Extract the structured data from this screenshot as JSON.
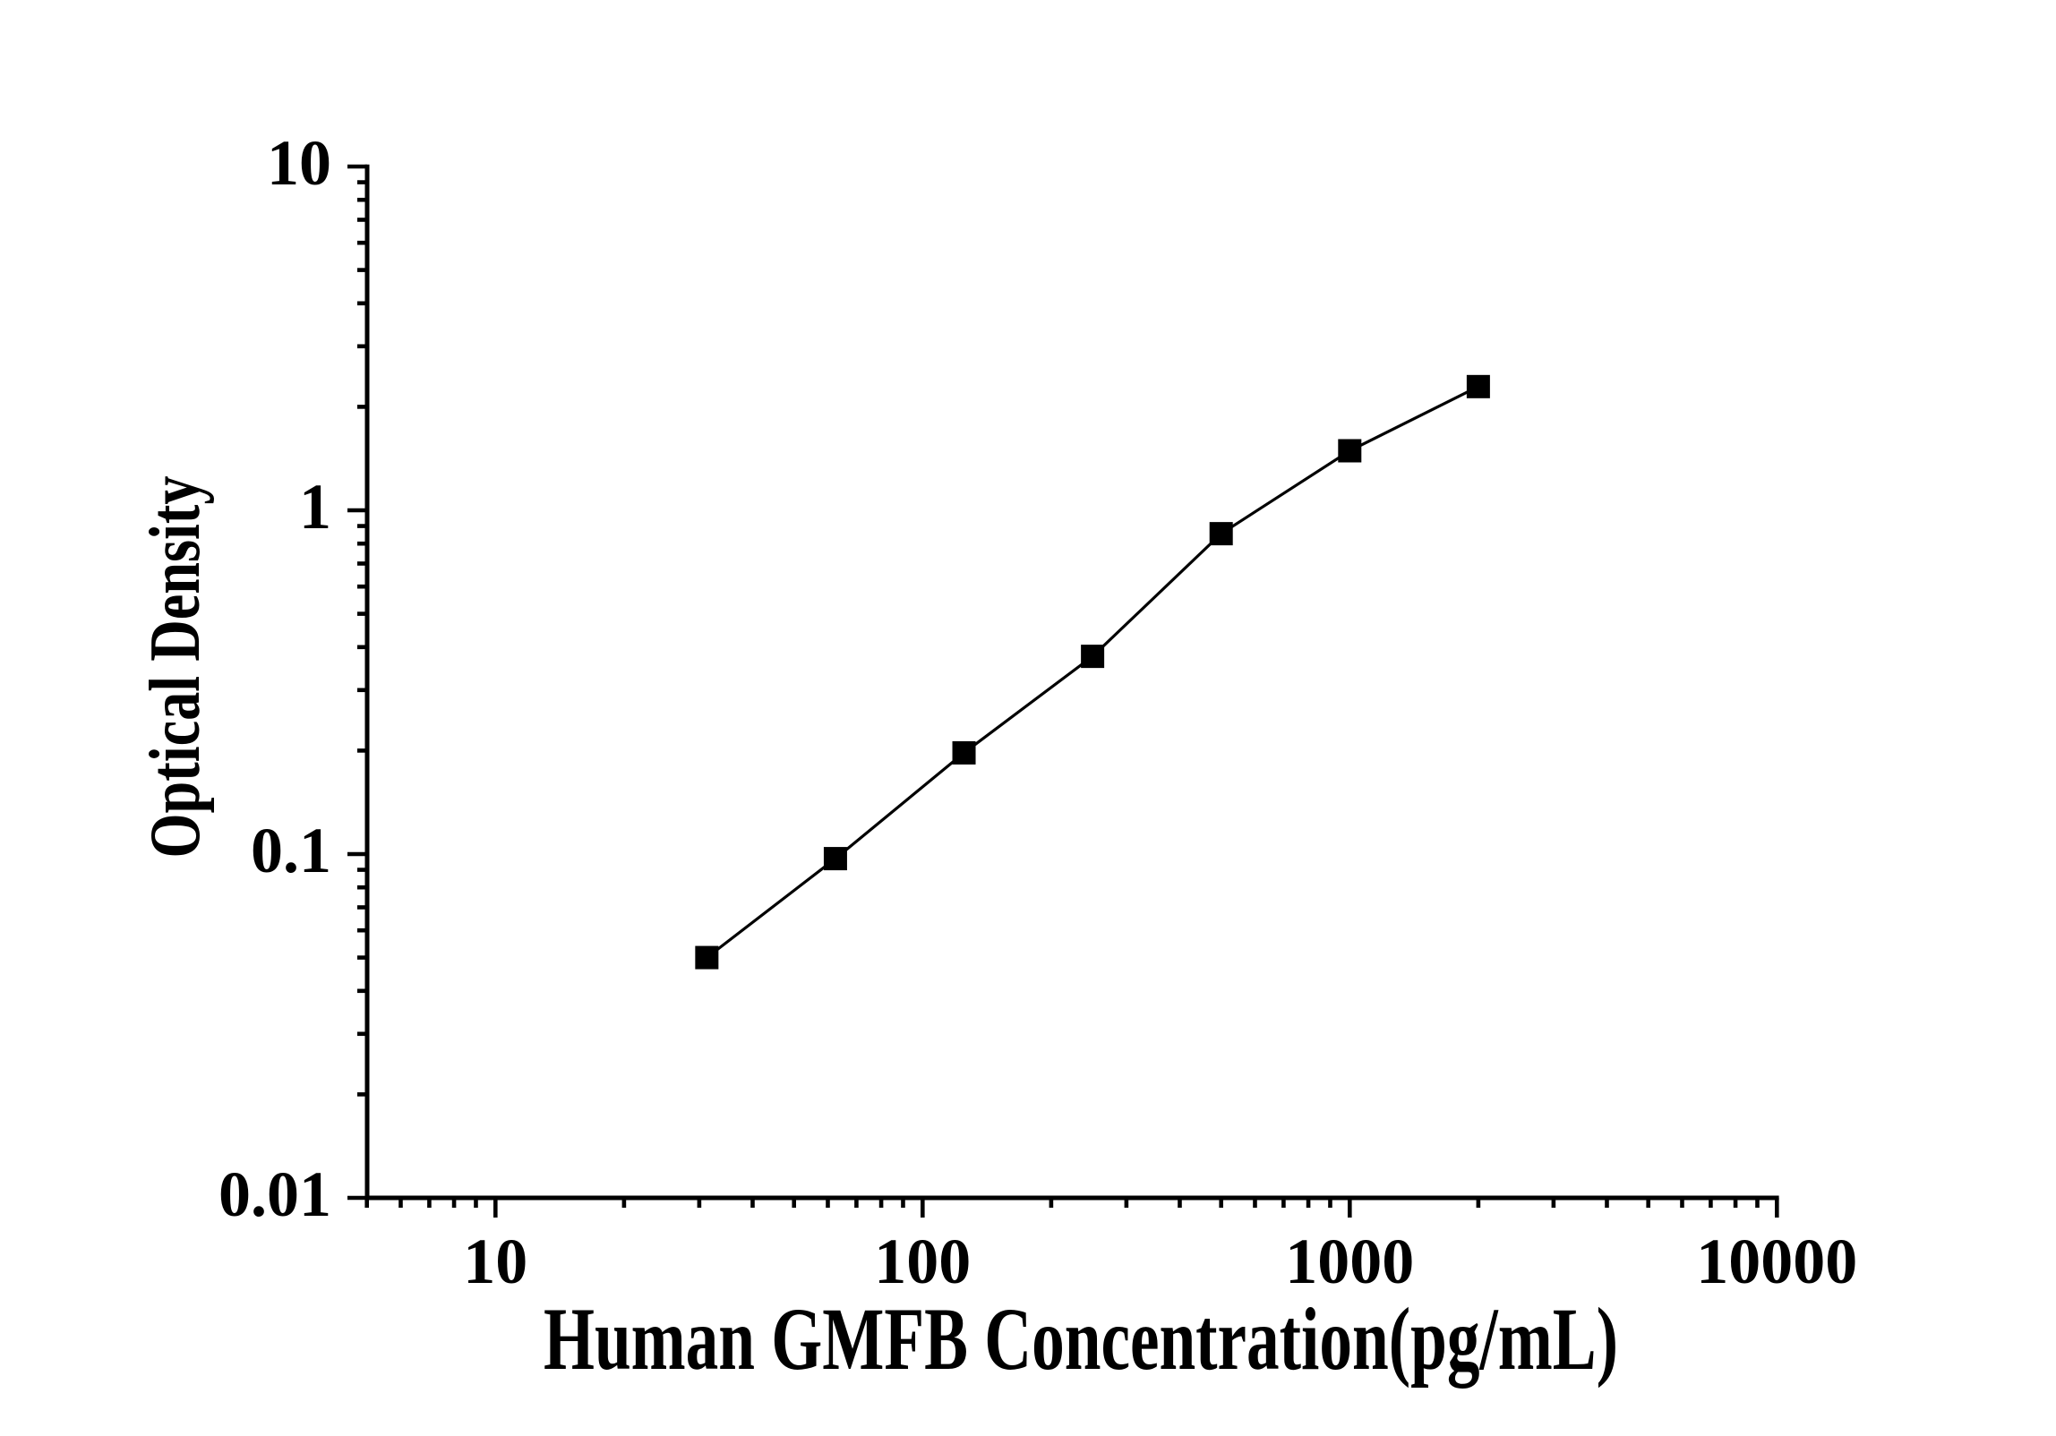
{
  "figure": {
    "background_color": "#ffffff",
    "ink_color": "#000000"
  },
  "chart_data": {
    "type": "line",
    "title": "",
    "xlabel": "Human GMFB Concentration(pg/mL)",
    "ylabel": "Optical Density",
    "x_scale": "log",
    "y_scale": "log",
    "xlim": [
      5,
      10000
    ],
    "ylim": [
      0.01,
      10
    ],
    "x_major_ticks": [
      10,
      100,
      1000,
      10000
    ],
    "x_major_tick_labels": [
      "10",
      "100",
      "1000",
      "10000"
    ],
    "y_major_ticks": [
      10,
      1,
      0.1,
      0.01
    ],
    "y_major_tick_labels": [
      "10",
      "1",
      "0.1",
      "0.01"
    ],
    "grid": false,
    "legend": "none",
    "marker": "filled-square",
    "series": [
      {
        "name": "standard-curve",
        "color": "#000000",
        "x": [
          31.25,
          62.5,
          125,
          250,
          500,
          1000,
          2000
        ],
        "y": [
          0.05,
          0.097,
          0.197,
          0.376,
          0.855,
          1.49,
          2.29
        ]
      }
    ]
  }
}
